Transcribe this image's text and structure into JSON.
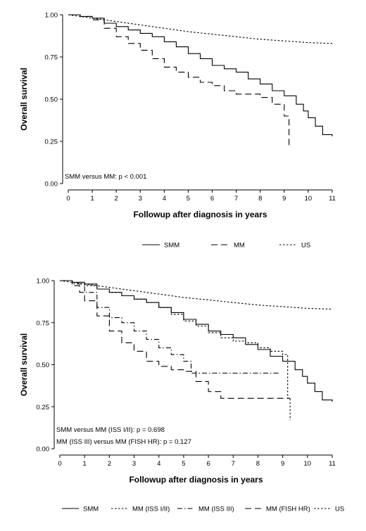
{
  "chart_data": [
    {
      "type": "line",
      "subtype": "kaplan-meier",
      "title": "",
      "xlabel": "Followup after diagnosis in years",
      "ylabel": "Overall survival",
      "xlim": [
        0,
        11
      ],
      "ylim": [
        0,
        1
      ],
      "xticks": [
        "0",
        "1",
        "2",
        "3",
        "4",
        "5",
        "6",
        "7",
        "8",
        "9",
        "10",
        "11"
      ],
      "yticks": [
        "0.00",
        "0.25",
        "0.50",
        "0.75",
        "1.00"
      ],
      "grid": false,
      "legend_position": "bottom",
      "annotations": [
        "SMM versus MM: p < 0.001"
      ],
      "series": [
        {
          "name": "SMM",
          "dash": "solid",
          "x": [
            0,
            0.5,
            1,
            1.5,
            2,
            2.5,
            3,
            3.5,
            4,
            4.5,
            5,
            5.5,
            6,
            6.5,
            7,
            7.5,
            8,
            8.5,
            9,
            9.5,
            9.8,
            10,
            10.3,
            10.6,
            11
          ],
          "y": [
            1.0,
            0.99,
            0.98,
            0.95,
            0.93,
            0.91,
            0.89,
            0.87,
            0.84,
            0.81,
            0.77,
            0.74,
            0.7,
            0.68,
            0.66,
            0.62,
            0.59,
            0.55,
            0.52,
            0.47,
            0.43,
            0.39,
            0.34,
            0.29,
            0.28
          ]
        },
        {
          "name": "MM",
          "dash": "long-dash",
          "x": [
            0,
            0.5,
            1,
            1.5,
            2,
            2.5,
            3,
            3.5,
            4,
            4.5,
            5,
            5.5,
            6,
            6.5,
            7,
            7.5,
            8,
            8.5,
            8.9,
            9.0,
            9.1,
            9.2,
            9.3
          ],
          "y": [
            1.0,
            0.99,
            0.97,
            0.92,
            0.87,
            0.83,
            0.79,
            0.74,
            0.69,
            0.66,
            0.63,
            0.6,
            0.58,
            0.55,
            0.53,
            0.53,
            0.51,
            0.47,
            0.47,
            0.4,
            0.4,
            0.22,
            0.22
          ]
        },
        {
          "name": "US",
          "dash": "short-dash",
          "x": [
            0,
            1,
            2,
            3,
            4,
            5,
            6,
            7,
            8,
            9,
            10,
            11
          ],
          "y": [
            1.0,
            0.98,
            0.96,
            0.94,
            0.92,
            0.9,
            0.885,
            0.87,
            0.855,
            0.845,
            0.835,
            0.83
          ]
        }
      ]
    },
    {
      "type": "line",
      "subtype": "kaplan-meier",
      "title": "",
      "xlabel": "Followup after diagnosis in years",
      "ylabel": "Overall survival",
      "xlim": [
        0,
        11
      ],
      "ylim": [
        0,
        1
      ],
      "xticks": [
        "0",
        "1",
        "2",
        "3",
        "4",
        "5",
        "6",
        "7",
        "8",
        "9",
        "10",
        "11"
      ],
      "yticks": [
        "0.00",
        "0.25",
        "0.50",
        "0.75",
        "1.00"
      ],
      "grid": false,
      "legend_position": "bottom",
      "annotations": [
        "SMM versus MM (ISS I/II): p = 0.698",
        "MM (ISS III) versus MM (FISH HR): p = 0.127"
      ],
      "series": [
        {
          "name": "SMM",
          "dash": "solid",
          "x": [
            0,
            0.5,
            1,
            1.5,
            2,
            2.5,
            3,
            3.5,
            4,
            4.5,
            5,
            5.5,
            6,
            6.5,
            7,
            7.5,
            8,
            8.5,
            9,
            9.5,
            9.8,
            10,
            10.3,
            10.6,
            11
          ],
          "y": [
            1.0,
            0.99,
            0.98,
            0.95,
            0.93,
            0.91,
            0.89,
            0.87,
            0.84,
            0.81,
            0.77,
            0.74,
            0.7,
            0.68,
            0.66,
            0.62,
            0.59,
            0.55,
            0.52,
            0.47,
            0.43,
            0.39,
            0.34,
            0.29,
            0.28
          ]
        },
        {
          "name": "MM (ISS I/II)",
          "dash": "short-dash",
          "x": [
            0,
            0.5,
            1,
            1.5,
            2,
            2.5,
            3,
            3.5,
            4,
            4.5,
            5,
            5.5,
            6,
            6.5,
            7,
            7.5,
            8,
            8.5,
            9,
            9.1,
            9.2,
            9.3
          ],
          "y": [
            1.0,
            0.99,
            0.97,
            0.95,
            0.93,
            0.91,
            0.89,
            0.87,
            0.84,
            0.8,
            0.76,
            0.73,
            0.69,
            0.66,
            0.64,
            0.63,
            0.6,
            0.58,
            0.56,
            0.56,
            0.3,
            0.17
          ]
        },
        {
          "name": "MM (ISS III)",
          "dash": "dash-dot",
          "x": [
            0,
            0.5,
            1,
            1.5,
            2,
            2.5,
            3,
            3.5,
            4,
            4.5,
            5,
            5.3,
            5.5,
            6,
            7,
            8,
            8.9
          ],
          "y": [
            1.0,
            0.98,
            0.93,
            0.84,
            0.78,
            0.75,
            0.7,
            0.65,
            0.6,
            0.56,
            0.52,
            0.45,
            0.45,
            0.45,
            0.45,
            0.45,
            0.45
          ]
        },
        {
          "name": "MM (FISH HR)",
          "dash": "long-dash",
          "x": [
            0,
            0.5,
            0.8,
            1,
            1.5,
            2,
            2.5,
            3,
            3.5,
            4,
            4.5,
            5,
            5.5,
            6,
            6.5,
            7,
            8,
            9,
            9.3
          ],
          "y": [
            1.0,
            0.97,
            0.93,
            0.88,
            0.79,
            0.7,
            0.63,
            0.58,
            0.52,
            0.49,
            0.47,
            0.46,
            0.4,
            0.34,
            0.3,
            0.3,
            0.3,
            0.3,
            0.3
          ]
        },
        {
          "name": "US",
          "dash": "short-dash",
          "x": [
            0,
            1,
            2,
            3,
            4,
            5,
            6,
            7,
            8,
            9,
            10,
            11
          ],
          "y": [
            1.0,
            0.98,
            0.96,
            0.94,
            0.92,
            0.9,
            0.885,
            0.87,
            0.855,
            0.845,
            0.835,
            0.83
          ]
        }
      ]
    }
  ]
}
